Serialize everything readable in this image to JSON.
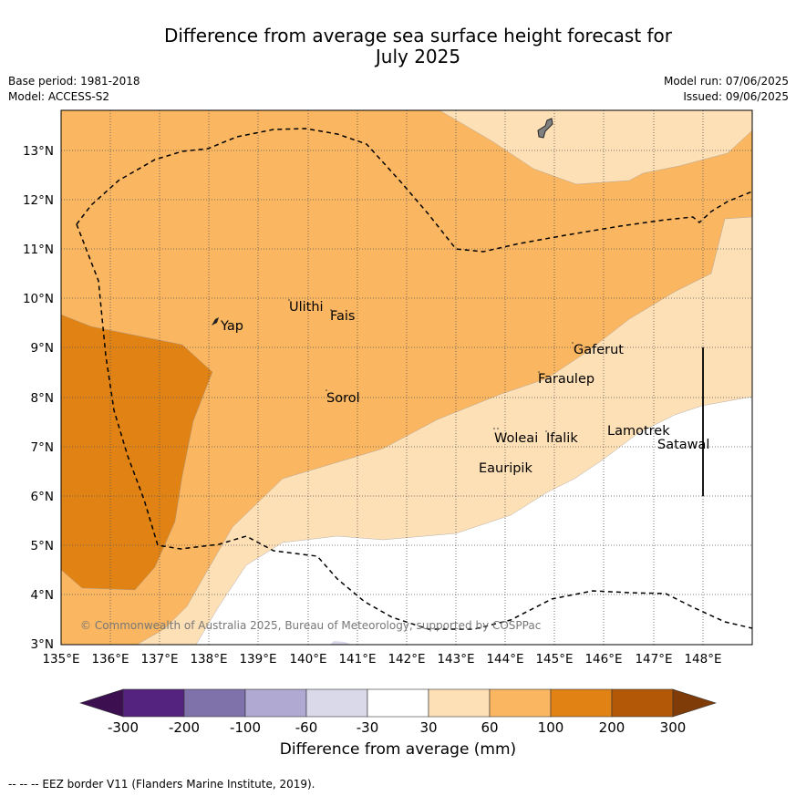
{
  "title_line1": "Difference from average sea surface height forecast for",
  "title_line2": "July 2025",
  "meta": {
    "base_period": "Base period: 1981-2018",
    "model": "Model: ACCESS-S2",
    "model_run": "Model run: 07/06/2025",
    "issued": "Issued: 09/06/2025"
  },
  "lat_labels": [
    "13°N",
    "12°N",
    "11°N",
    "10°N",
    "9°N",
    "8°N",
    "7°N",
    "6°N",
    "5°N",
    "4°N",
    "3°N"
  ],
  "lon_labels": [
    "135°E",
    "136°E",
    "137°E",
    "138°E",
    "139°E",
    "140°E",
    "141°E",
    "142°E",
    "143°E",
    "144°E",
    "145°E",
    "146°E",
    "147°E",
    "148°E"
  ],
  "places": [
    "Yap",
    "Ulithi",
    "Fais",
    "Sorol",
    "Gaferut",
    "Faraulep",
    "Woleai",
    "Ifalik",
    "Lamotrek",
    "Satawal",
    "Eauripik"
  ],
  "copyright": "© Commonwealth of Australia 2025, Bureau of Meteorology, supported by COSPPac",
  "colorbar": {
    "ticks": [
      "-300",
      "-200",
      "-100",
      "-60",
      "-30",
      "30",
      "60",
      "100",
      "200",
      "300"
    ],
    "colors": [
      "#3b0f50",
      "#54237f",
      "#7f72ab",
      "#b0a9d1",
      "#d9d9ea",
      "#ffffff",
      "#fee0b6",
      "#fab661",
      "#e08214",
      "#b35806",
      "#7f3b08"
    ],
    "label": "Difference from average (mm)"
  },
  "eez_note": "--  --  -- EEZ border V11 (Flanders Marine Institute, 2019)."
}
